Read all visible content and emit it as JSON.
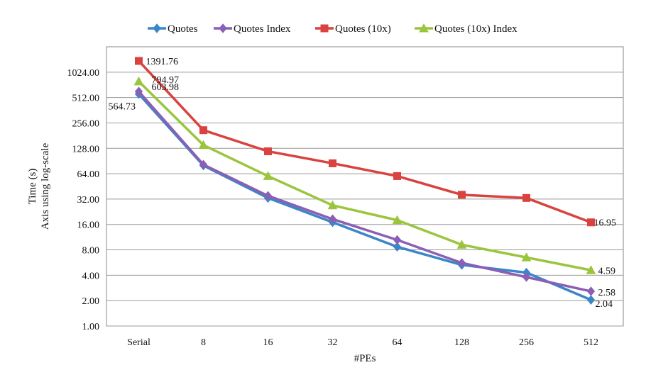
{
  "chart_data": {
    "type": "line",
    "title": "",
    "xlabel": "#PEs",
    "ylabel": [
      "Time (s)",
      "Axis using log-scale"
    ],
    "yscale": "log2",
    "ylim": [
      1,
      2048
    ],
    "yticks": [
      1,
      2,
      4,
      8,
      16,
      32,
      64,
      128,
      256,
      512,
      1024
    ],
    "ytick_labels": [
      "1.00",
      "2.00",
      "4.00",
      "8.00",
      "16.00",
      "32.00",
      "64.00",
      "128.00",
      "256.00",
      "512.00",
      "1024.00"
    ],
    "categories": [
      "Serial",
      "8",
      "16",
      "32",
      "64",
      "128",
      "256",
      "512"
    ],
    "legend_position": "top",
    "grid": "horizontal",
    "series": [
      {
        "name": "Quotes",
        "color": "#3b86c8",
        "marker": "diamond",
        "values": [
          564.73,
          80,
          33,
          17,
          8.7,
          5.3,
          4.3,
          2.04
        ],
        "labels": [
          {
            "index": 0,
            "text": "564.73"
          },
          {
            "index": 7,
            "text": "2.04"
          }
        ]
      },
      {
        "name": "Quotes Index",
        "color": "#8a5fb4",
        "marker": "diamond",
        "values": [
          603.98,
          82,
          35,
          18.5,
          10.5,
          5.6,
          3.8,
          2.58
        ],
        "labels": [
          {
            "index": 0,
            "text": "603.98"
          },
          {
            "index": 7,
            "text": "2.58"
          }
        ]
      },
      {
        "name": "Quotes (10x)",
        "color": "#d9423f",
        "marker": "square",
        "values": [
          1391.76,
          210,
          118,
          85,
          60,
          36,
          33,
          16.95
        ],
        "labels": [
          {
            "index": 0,
            "text": "1391.76"
          },
          {
            "index": 7,
            "text": "16.95"
          }
        ]
      },
      {
        "name": "Quotes (10x) Index",
        "color": "#9bc53d",
        "marker": "triangle",
        "values": [
          794.97,
          140,
          60,
          27,
          18,
          9.2,
          6.5,
          4.59
        ],
        "labels": [
          {
            "index": 0,
            "text": "794.97"
          },
          {
            "index": 7,
            "text": "4.59"
          }
        ]
      }
    ]
  }
}
